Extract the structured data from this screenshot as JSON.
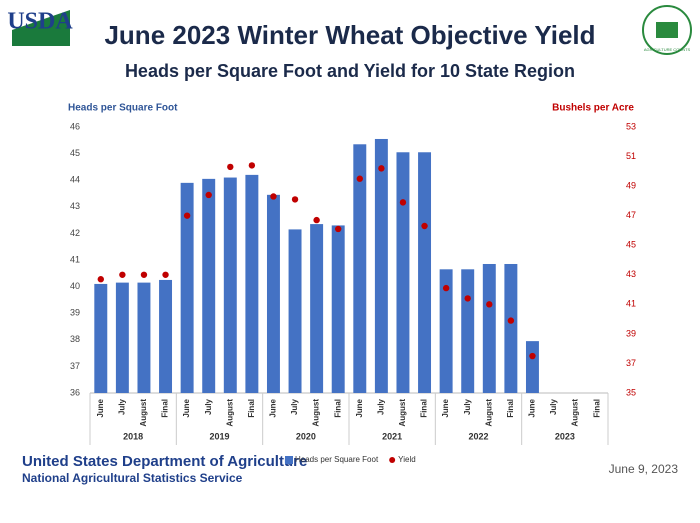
{
  "header": {
    "logo_text": "USDA",
    "badge_text": "AGRICULTURE COUNTS"
  },
  "chart_data": {
    "type": "bar",
    "title": "June 2023 Winter Wheat Objective Yield",
    "subtitle": "Heads per Square Foot and Yield for 10 State Region",
    "y_label": "Heads per Square Foot",
    "y2_label": "Bushels per Acre",
    "categories": [
      "June",
      "July",
      "August",
      "Final",
      "June",
      "July",
      "August",
      "Final",
      "June",
      "July",
      "August",
      "Final",
      "June",
      "July",
      "August",
      "Final",
      "June",
      "July",
      "August",
      "Final",
      "June",
      "July",
      "August",
      "Final"
    ],
    "groups": [
      "2018",
      "2019",
      "2020",
      "2021",
      "2022",
      "2023"
    ],
    "series": [
      {
        "name": "Heads per Square Foot",
        "color": "#4472c4",
        "mark": "bar",
        "values": [
          40.1,
          40.15,
          40.15,
          40.25,
          43.9,
          44.05,
          44.1,
          44.2,
          43.45,
          42.15,
          42.35,
          42.3,
          45.35,
          45.55,
          45.05,
          45.05,
          40.65,
          40.65,
          40.85,
          40.85,
          37.95,
          null,
          null,
          null
        ]
      },
      {
        "name": "Yield",
        "color": "#c00000",
        "mark": "dot",
        "axis": "y2",
        "values": [
          42.7,
          43.0,
          43.0,
          43.0,
          47.0,
          48.4,
          50.3,
          50.4,
          48.3,
          48.1,
          46.7,
          46.1,
          49.5,
          50.2,
          47.9,
          46.3,
          42.1,
          41.4,
          41.0,
          39.9,
          37.5,
          null,
          null,
          null
        ]
      }
    ],
    "ylim": [
      36,
      46
    ],
    "yticks": [
      36,
      37,
      38,
      39,
      40,
      41,
      42,
      43,
      44,
      45,
      46
    ],
    "y2lim": [
      35,
      53
    ],
    "y2ticks": [
      35,
      37,
      39,
      41,
      43,
      45,
      47,
      49,
      51,
      53
    ],
    "legend": "bottom"
  },
  "footer": {
    "agency": "United States Department of Agriculture",
    "service": "National Agricultural Statistics Service",
    "date": "June 9, 2023"
  }
}
